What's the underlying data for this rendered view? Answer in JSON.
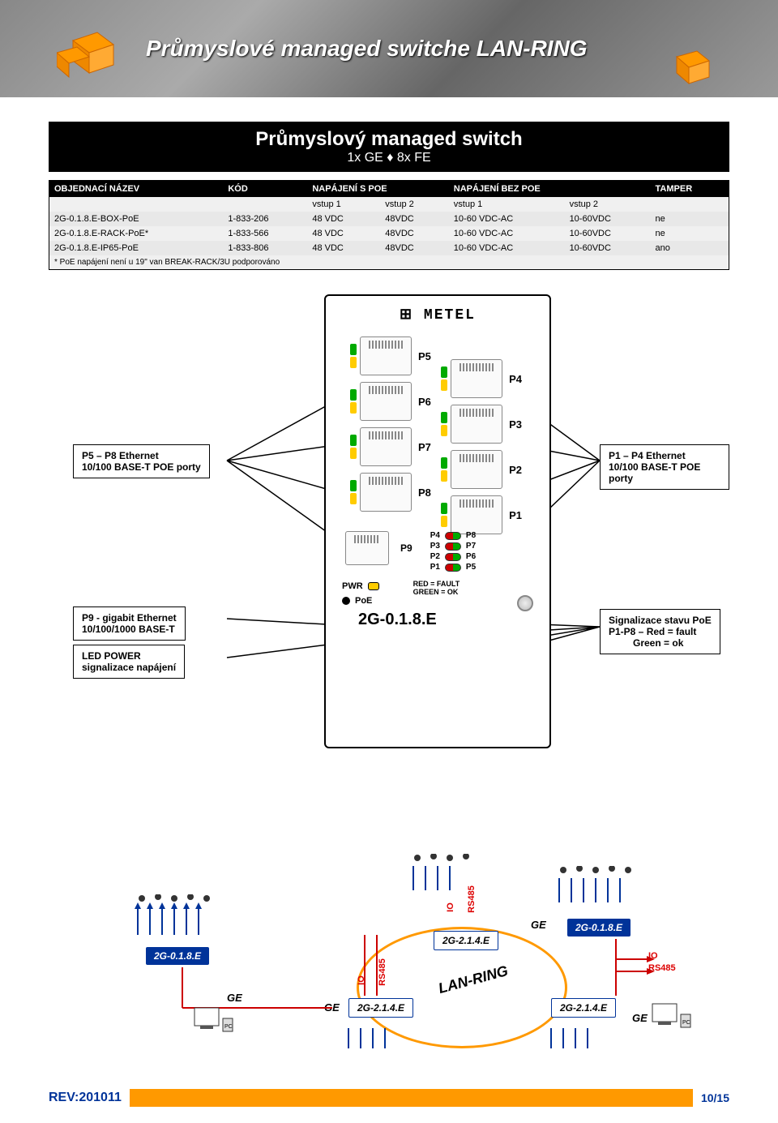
{
  "header": {
    "title": "Průmyslové managed switche LAN-RING"
  },
  "subtitle": {
    "h2": "Průmyslový managed switch",
    "p": "1x GE ♦ 8x FE"
  },
  "table": {
    "columns": [
      "OBJEDNACÍ NÁZEV",
      "KÓD",
      "NAPÁJENÍ S POE",
      "",
      "NAPÁJENÍ BEZ POE",
      "",
      "TAMPER"
    ],
    "subcolumns": [
      "",
      "",
      "vstup 1",
      "vstup 2",
      "vstup 1",
      "vstup 2",
      ""
    ],
    "rows": [
      [
        "2G-0.1.8.E-BOX-PoE",
        "1-833-206",
        "48 VDC",
        "48VDC",
        "10-60 VDC-AC",
        "10-60VDC",
        "ne"
      ],
      [
        "2G-0.1.8.E-RACK-PoE*",
        "1-833-566",
        "48 VDC",
        "48VDC",
        "10-60 VDC-AC",
        "10-60VDC",
        "ne"
      ],
      [
        "2G-0.1.8.E-IP65-PoE",
        "1-833-806",
        "48 VDC",
        "48VDC",
        "10-60 VDC-AC",
        "10-60VDC",
        "ano"
      ]
    ],
    "footnote": "* PoE napájení není u 19\" van BREAK-RACK/3U podporováno"
  },
  "device": {
    "brand": "⊞ METEL",
    "ports_left": [
      "P5",
      "P6",
      "P7",
      "P8"
    ],
    "ports_right": [
      "P4",
      "P3",
      "P2",
      "P1"
    ],
    "p9_label": "P9",
    "pwr_label": "PWR",
    "poe_label": "PoE",
    "led_grid": {
      "left": [
        "P4",
        "P3",
        "P2",
        "P1"
      ],
      "right": [
        "P8",
        "P7",
        "P6",
        "P5"
      ]
    },
    "fault_lines": [
      "RED    = FAULT",
      "GREEN = OK"
    ],
    "model": "2G-0.1.8.E"
  },
  "callouts": {
    "c1": {
      "l1": "P5 – P8 Ethernet",
      "l2": "10/100 BASE-T POE porty"
    },
    "c2": {
      "l1": "P1 – P4 Ethernet",
      "l2": "10/100 BASE-T POE porty"
    },
    "c3": {
      "l1": "P9 - gigabit Ethernet",
      "l2": "10/100/1000 BASE-T"
    },
    "c4": {
      "l1": "LED POWER",
      "l2": "signalizace napájení"
    },
    "c5": {
      "l1": "Signalizace stavu PoE",
      "l2": "P1-P8 – Red = fault",
      "l3": "         Green = ok"
    }
  },
  "topology": {
    "ring_label": "LAN-RING",
    "nodes": {
      "n1": "2G-0.1.8.E",
      "n2": "2G-2.1.4.E",
      "n3": "2G-2.1.4.E",
      "n4": "2G-0.1.8.E",
      "n5": "2G-2.1.4.E"
    },
    "labels": {
      "ge": "GE",
      "io": "IO",
      "rs485": "RS485"
    },
    "colors": {
      "ring": "#ff9900",
      "node": "#003399",
      "red": "#cc0000"
    }
  },
  "footer": {
    "rev": "REV:201011",
    "page": "10/15"
  }
}
